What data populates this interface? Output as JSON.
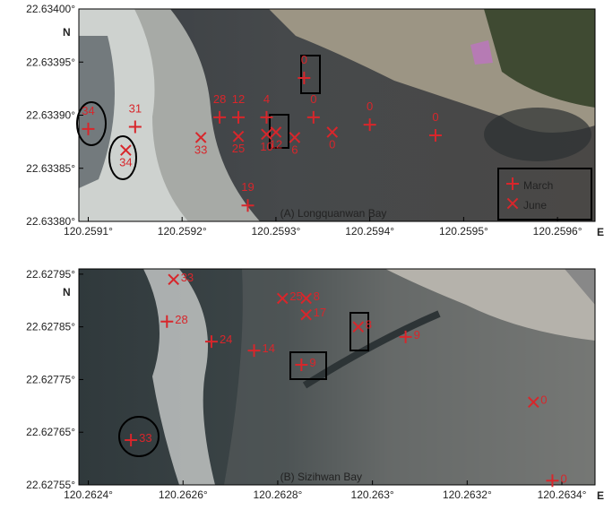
{
  "chart_data": [
    {
      "type": "scatter",
      "title": "(A) Longquanwan Bay",
      "x_axis_end_label": "E",
      "y_axis_end_label": "N",
      "xlim": [
        120.25909,
        120.25964
      ],
      "ylim": [
        22.6338,
        22.634
      ],
      "xticks": [
        {
          "value": 120.2591,
          "label": "120.2591°"
        },
        {
          "value": 120.2592,
          "label": "120.2592°"
        },
        {
          "value": 120.2593,
          "label": "120.2593°"
        },
        {
          "value": 120.2594,
          "label": "120.2594°"
        },
        {
          "value": 120.2595,
          "label": "120.2595°"
        },
        {
          "value": 120.2596,
          "label": "120.2596°"
        }
      ],
      "yticks": [
        {
          "value": 22.6338,
          "label": "22.63380°"
        },
        {
          "value": 22.63385,
          "label": "22.63385°"
        },
        {
          "value": 22.6339,
          "label": "22.63390°"
        },
        {
          "value": 22.63395,
          "label": "22.63395°"
        },
        {
          "value": 22.634,
          "label": "22.63400°"
        }
      ],
      "legend": "bottom-right",
      "series": [
        {
          "name": "March",
          "marker": "plus",
          "color": "#d8262b",
          "x": [
            120.2591,
            120.25915,
            120.25924,
            120.25926,
            120.25929,
            120.25933,
            120.25934,
            120.2594,
            120.25947,
            120.25927
          ],
          "y": [
            22.633887,
            22.633889,
            22.633898,
            22.633898,
            22.633898,
            22.633935,
            22.633898,
            22.633891,
            22.633881,
            22.633815
          ],
          "counts": [
            34,
            31,
            28,
            12,
            4,
            0,
            0,
            0,
            0,
            19
          ]
        },
        {
          "name": "June",
          "marker": "cross",
          "color": "#d8262b",
          "x": [
            120.25914,
            120.25922,
            120.25926,
            120.25929,
            120.2593,
            120.25932,
            120.25936
          ],
          "y": [
            22.633867,
            22.633879,
            22.63388,
            22.633882,
            22.633884,
            22.633879,
            22.633884
          ],
          "counts": [
            34,
            33,
            25,
            10,
            12,
            6,
            0
          ]
        }
      ]
    },
    {
      "type": "scatter",
      "title": "(B) Sizihwan Bay",
      "x_axis_end_label": "E",
      "y_axis_end_label": "N",
      "xlim": [
        120.26238,
        120.26347
      ],
      "ylim": [
        22.62755,
        22.62796
      ],
      "xticks": [
        {
          "value": 120.2624,
          "label": "120.2624°"
        },
        {
          "value": 120.2626,
          "label": "120.2626°"
        },
        {
          "value": 120.2628,
          "label": "120.2628°"
        },
        {
          "value": 120.263,
          "label": "120.263°"
        },
        {
          "value": 120.2632,
          "label": "120.2632°"
        },
        {
          "value": 120.2634,
          "label": "120.2634°"
        }
      ],
      "yticks": [
        {
          "value": 22.62755,
          "label": "22.62755°"
        },
        {
          "value": 22.62765,
          "label": "22.62765°"
        },
        {
          "value": 22.62775,
          "label": "22.62775°"
        },
        {
          "value": 22.62785,
          "label": "22.62785°"
        },
        {
          "value": 22.62795,
          "label": "22.62795°"
        }
      ],
      "series": [
        {
          "name": "March",
          "marker": "plus",
          "color": "#d8262b",
          "x": [
            120.262566,
            120.26266,
            120.26275,
            120.26285,
            120.26307,
            120.26249,
            120.26338
          ],
          "y": [
            22.62786,
            22.627822,
            22.627805,
            22.627778,
            22.627831,
            22.627635,
            22.627558
          ],
          "counts": [
            28,
            24,
            14,
            9,
            9,
            33,
            0
          ]
        },
        {
          "name": "June",
          "marker": "cross",
          "color": "#d8262b",
          "x": [
            120.26258,
            120.26281,
            120.26286,
            120.26286,
            120.26297,
            120.26334
          ],
          "y": [
            22.62794,
            22.627904,
            22.627904,
            22.627873,
            22.62785,
            22.627707
          ],
          "counts": [
            33,
            25,
            8,
            17,
            8,
            0
          ]
        }
      ]
    }
  ]
}
